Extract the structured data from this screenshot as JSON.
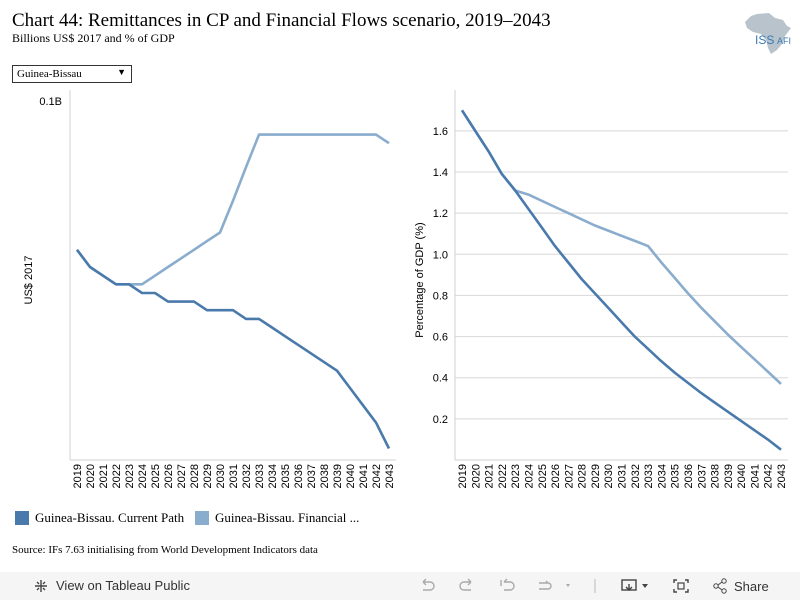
{
  "header": {
    "title": "Chart 44: Remittances in CP and Financial Flows scenario, 2019–2043",
    "subtitle": "Billions US$ 2017 and % of GDP",
    "logo_text": "ISS",
    "logo_text2": "AFI"
  },
  "filter": {
    "selected": "Guinea-Bissau"
  },
  "chart_data": [
    {
      "type": "line",
      "title": "",
      "ylabel": "US$ 2017",
      "y_tick_labels": [
        "0.1B"
      ],
      "categories": [
        "2019",
        "2020",
        "2021",
        "2022",
        "2023",
        "2024",
        "2025",
        "2026",
        "2027",
        "2028",
        "2029",
        "2030",
        "2031",
        "2032",
        "2033",
        "2034",
        "2035",
        "2036",
        "2037",
        "2038",
        "2039",
        "2040",
        "2041",
        "2042",
        "2043"
      ],
      "series": [
        {
          "name": "Guinea-Bissau. Current Path",
          "color": "#4a7aab",
          "values": [
            0.0688,
            0.0652,
            0.0634,
            0.0616,
            0.0616,
            0.0598,
            0.0598,
            0.058,
            0.058,
            0.058,
            0.0562,
            0.0562,
            0.0562,
            0.0544,
            0.0544,
            0.0526,
            0.0508,
            0.049,
            0.0472,
            0.0454,
            0.0436,
            0.04,
            0.0364,
            0.0328,
            0.0274
          ]
        },
        {
          "name": "Guinea-Bissau. Financial Flows",
          "color": "#8aaccd",
          "values": [
            0.0688,
            0.0652,
            0.0634,
            0.0616,
            0.0616,
            0.0616,
            0.0634,
            0.0652,
            0.067,
            0.0688,
            0.0706,
            0.0724,
            0.079,
            0.086,
            0.0928,
            0.0928,
            0.0928,
            0.0928,
            0.0928,
            0.0928,
            0.0928,
            0.0928,
            0.0928,
            0.0928,
            0.091
          ]
        }
      ],
      "ylim": [
        0.025,
        0.1
      ],
      "grid": false
    },
    {
      "type": "line",
      "title": "",
      "ylabel": "Percentage of GDP (%)",
      "y_ticks": [
        0.2,
        0.4,
        0.6,
        0.8,
        1.0,
        1.2,
        1.4,
        1.6
      ],
      "y_tick_labels": [
        "0.2",
        "0.4",
        "0.6",
        "0.8",
        "1.0",
        "1.2",
        "1.4",
        "1.6"
      ],
      "categories": [
        "2019",
        "2020",
        "2021",
        "2022",
        "2023",
        "2024",
        "2025",
        "2026",
        "2027",
        "2028",
        "2029",
        "2030",
        "2031",
        "2032",
        "2033",
        "2034",
        "2035",
        "2036",
        "2037",
        "2038",
        "2039",
        "2040",
        "2041",
        "2042",
        "2043"
      ],
      "series": [
        {
          "name": "Guinea-Bissau. Current Path",
          "color": "#4a7aab",
          "values": [
            1.7,
            1.6,
            1.5,
            1.39,
            1.31,
            1.22,
            1.13,
            1.04,
            0.96,
            0.88,
            0.81,
            0.74,
            0.67,
            0.6,
            0.54,
            0.48,
            0.425,
            0.375,
            0.325,
            0.28,
            0.235,
            0.19,
            0.145,
            0.1,
            0.05
          ]
        },
        {
          "name": "Guinea-Bissau. Financial Flows",
          "color": "#8aaccd",
          "values": [
            1.7,
            1.6,
            1.5,
            1.39,
            1.31,
            1.29,
            1.26,
            1.23,
            1.2,
            1.17,
            1.14,
            1.115,
            1.09,
            1.065,
            1.04,
            0.96,
            0.885,
            0.81,
            0.74,
            0.675,
            0.61,
            0.55,
            0.49,
            0.43,
            0.37
          ]
        }
      ],
      "ylim": [
        0,
        1.75
      ],
      "grid": true
    }
  ],
  "legend": {
    "items": [
      {
        "label": "Guinea-Bissau. Current Path",
        "color": "#4a7aab"
      },
      {
        "label": "Guinea-Bissau. Financial ...",
        "color": "#8aaccd"
      }
    ]
  },
  "source": "Source: IFs 7.63 initialising from World Development Indicators data",
  "footer": {
    "view_label": "View on Tableau Public",
    "share_label": "Share"
  }
}
